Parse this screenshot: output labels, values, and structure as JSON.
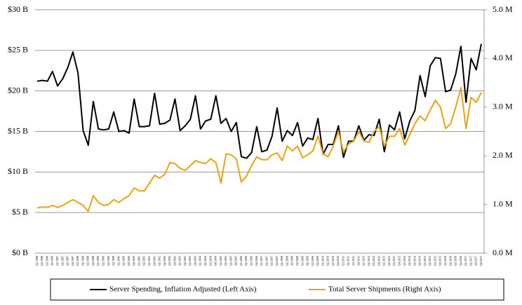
{
  "chart_data": {
    "type": "line",
    "categories": [
      "Q1 1996",
      "Q2 1996",
      "Q3 1996",
      "Q4 1996",
      "Q1 1997",
      "Q2 1997",
      "Q3 1997",
      "Q4 1997",
      "Q1 1998",
      "Q2 1998",
      "Q3 1998",
      "Q4 1998",
      "Q1 1999",
      "Q2 1999",
      "Q3 1999",
      "Q4 1999",
      "Q1 2000",
      "Q2 2000",
      "Q3 2000",
      "Q4 2000",
      "Q1 2001",
      "Q2 2001",
      "Q3 2001",
      "Q4 2001",
      "Q1 2002",
      "Q2 2002",
      "Q3 2002",
      "Q4 2002",
      "Q1 2003",
      "Q2 2003",
      "Q3 2003",
      "Q4 2003",
      "Q1 2004",
      "Q2 2004",
      "Q3 2004",
      "Q4 2004",
      "Q1 2005",
      "Q2 2005",
      "Q3 2005",
      "Q4 2005",
      "Q1 2006",
      "Q2 2006",
      "Q3 2006",
      "Q4 2006",
      "Q1 2007",
      "Q2 2007",
      "Q3 2007",
      "Q4 2007",
      "Q1 2008",
      "Q2 2008",
      "Q3 2008",
      "Q4 2008",
      "Q1 2009",
      "Q2 2009",
      "Q3 2009",
      "Q4 2009",
      "Q1 2010",
      "Q2 2010",
      "Q3 2010",
      "Q4 2010",
      "Q1 2011",
      "Q2 2011",
      "Q3 2011",
      "Q4 2011",
      "Q1 2012",
      "Q2 2012",
      "Q3 2012",
      "Q4 2012",
      "Q1 2013",
      "Q2 2013",
      "Q3 2013",
      "Q4 2013",
      "Q1 2014",
      "Q2 2014",
      "Q3 2014",
      "Q4 2014",
      "Q1 2015",
      "Q2 2015",
      "Q3 2015",
      "Q4 2015",
      "Q1 2016",
      "Q2 2016",
      "Q3 2016",
      "Q4 2016",
      "Q1 2017",
      "Q2 2017",
      "Q3 2017",
      "Q4 2017"
    ],
    "series": [
      {
        "name": "Server Spending, Inflation Adjusted (Left Axis)",
        "color": "#000000",
        "values": [
          21.2,
          21.3,
          21.2,
          22.4,
          20.6,
          21.5,
          22.9,
          24.8,
          22.2,
          15.1,
          13.3,
          18.7,
          15.3,
          15.2,
          15.3,
          17.4,
          15.0,
          15.1,
          14.8,
          19.0,
          15.6,
          15.6,
          15.7,
          19.7,
          15.9,
          16.0,
          16.4,
          19.0,
          15.1,
          15.7,
          16.5,
          19.4,
          15.3,
          16.3,
          16.5,
          19.4,
          16.0,
          16.6,
          15.0,
          16.1,
          11.9,
          11.7,
          12.4,
          15.6,
          12.5,
          12.7,
          14.4,
          17.9,
          13.8,
          15.1,
          14.5,
          16.1,
          13.2,
          14.2,
          14.0,
          16.6,
          12.2,
          13.4,
          13.4,
          15.7,
          11.8,
          13.8,
          13.8,
          15.7,
          13.9,
          14.6,
          14.5,
          16.5,
          12.5,
          15.8,
          15.2,
          17.4,
          14.1,
          16.3,
          17.6,
          21.9,
          19.3,
          23.1,
          24.1,
          24.0,
          19.9,
          20.1,
          22.1,
          25.5,
          18.6,
          24.0,
          22.6,
          25.8
        ]
      },
      {
        "name": "Total Server Shipments (Right Axis)",
        "color": "#e8a317",
        "axis": "y2",
        "values": [
          0.93,
          0.95,
          0.94,
          0.98,
          0.94,
          0.98,
          1.04,
          1.1,
          1.04,
          0.98,
          0.86,
          1.18,
          1.04,
          0.98,
          1.0,
          1.1,
          1.04,
          1.12,
          1.18,
          1.34,
          1.28,
          1.28,
          1.44,
          1.6,
          1.54,
          1.62,
          1.86,
          1.84,
          1.74,
          1.7,
          1.8,
          1.9,
          1.86,
          1.84,
          1.94,
          1.86,
          1.44,
          2.04,
          2.02,
          1.94,
          1.46,
          1.58,
          1.8,
          1.98,
          1.92,
          1.92,
          2.02,
          2.06,
          1.9,
          2.2,
          2.1,
          2.2,
          1.96,
          2.02,
          2.1,
          2.4,
          2.04,
          1.98,
          2.2,
          2.5,
          2.08,
          2.24,
          2.3,
          2.5,
          2.3,
          2.28,
          2.5,
          2.6,
          2.2,
          2.4,
          2.4,
          2.56,
          2.22,
          2.44,
          2.66,
          2.82,
          2.72,
          2.94,
          3.14,
          3.0,
          2.56,
          2.66,
          3.0,
          3.4,
          2.56,
          3.2,
          3.1,
          3.3
        ]
      }
    ],
    "ylim": [
      0,
      30
    ],
    "yticks": [
      {
        "value": 0,
        "label": "$0 B"
      },
      {
        "value": 5,
        "label": "$5 B"
      },
      {
        "value": 10,
        "label": "$10 B"
      },
      {
        "value": 15,
        "label": "$15 B"
      },
      {
        "value": 20,
        "label": "$20 B"
      },
      {
        "value": 25,
        "label": "$25 B"
      },
      {
        "value": 30,
        "label": "$30 B"
      }
    ],
    "y2lim": [
      0,
      5
    ],
    "y2ticks": [
      {
        "value": 0,
        "label": "0.0 M"
      },
      {
        "value": 1,
        "label": "1.0 M"
      },
      {
        "value": 2,
        "label": "2.0 M"
      },
      {
        "value": 3,
        "label": "3.0 M"
      },
      {
        "value": 4,
        "label": "4.0 M"
      },
      {
        "value": 5,
        "label": "5.0 M"
      }
    ],
    "grid": true,
    "legend": "bottom"
  }
}
